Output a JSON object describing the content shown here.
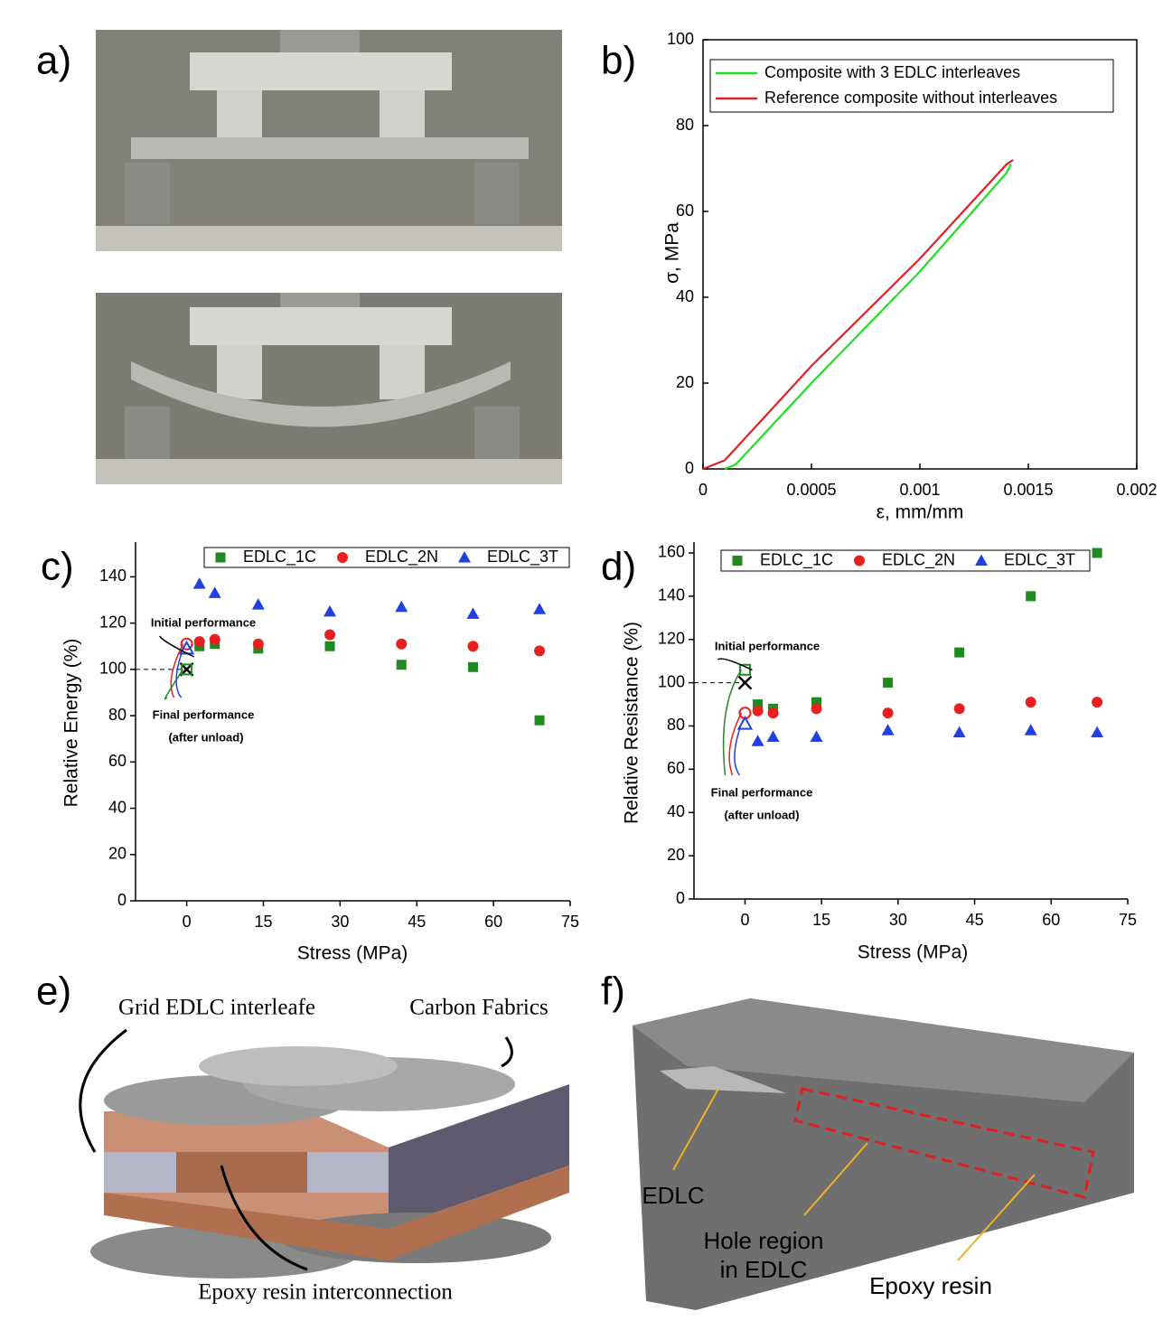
{
  "panels": [
    "a)",
    "b)",
    "c)",
    "d)",
    "e)",
    "f)"
  ],
  "chart_data": [
    {
      "type": "line",
      "xlabel": "ε, mm/mm",
      "ylabel": "σ, MPa",
      "xlim": [
        0,
        0.002
      ],
      "ylim": [
        0,
        100
      ],
      "xticks": [
        0,
        0.0005,
        0.001,
        0.0015,
        0.002
      ],
      "yticks": [
        0,
        20,
        40,
        60,
        80,
        100
      ],
      "series": [
        {
          "name": "Composite with 3 EDLC interleaves",
          "color": "#22dd22",
          "x": [
            0.0001,
            0.00015,
            0.0005,
            0.001,
            0.0014,
            0.00142
          ],
          "values": [
            0,
            1,
            20,
            46,
            69,
            71
          ]
        },
        {
          "name": "Reference composite without interleaves",
          "color": "#e02020",
          "x": [
            0,
            0.0001,
            0.0005,
            0.001,
            0.0014,
            0.00143
          ],
          "values": [
            0,
            2,
            24,
            49,
            71,
            72
          ]
        }
      ]
    },
    {
      "type": "scatter",
      "xlabel": "Stress (MPa)",
      "ylabel": "Relative Energy (%)",
      "xlim": [
        -10,
        75
      ],
      "ylim": [
        0,
        155
      ],
      "xticks": [
        0,
        15,
        30,
        45,
        60,
        75
      ],
      "yticks": [
        0,
        20,
        40,
        60,
        80,
        100,
        120,
        140
      ],
      "x": [
        2.5,
        5.5,
        14,
        28,
        42,
        56,
        69
      ],
      "initial_x": 0,
      "reference_value": 100,
      "annotations": [
        "Initial performance",
        "Final performance",
        "(after unload)"
      ],
      "series": [
        {
          "name": "EDLC_1C",
          "color": "#1f8a1f",
          "marker": "square",
          "values": [
            110,
            111,
            109,
            110,
            102,
            101,
            78
          ],
          "initial_value": 100
        },
        {
          "name": "EDLC_2N",
          "color": "#e82020",
          "marker": "circle",
          "values": [
            112,
            113,
            111,
            115,
            111,
            110,
            108
          ],
          "initial_value": 111
        },
        {
          "name": "EDLC_3T",
          "color": "#2040e0",
          "marker": "triangle",
          "values": [
            137,
            133,
            128,
            125,
            127,
            124,
            126
          ],
          "initial_value": 109
        }
      ]
    },
    {
      "type": "scatter",
      "xlabel": "Stress (MPa)",
      "ylabel": "Relative Resistance (%)",
      "xlim": [
        -10,
        75
      ],
      "ylim": [
        0,
        165
      ],
      "xticks": [
        0,
        15,
        30,
        45,
        60,
        75
      ],
      "yticks": [
        0,
        20,
        40,
        60,
        80,
        100,
        120,
        140,
        160
      ],
      "x": [
        2.5,
        5.5,
        14,
        28,
        42,
        56,
        69
      ],
      "initial_x": 0,
      "reference_value": 100,
      "annotations": [
        "Initial performance",
        "Final performance",
        "(after unload)"
      ],
      "series": [
        {
          "name": "EDLC_1C",
          "color": "#1f8a1f",
          "marker": "square",
          "values": [
            90,
            88,
            91,
            100,
            114,
            140,
            160
          ],
          "initial_value": 106
        },
        {
          "name": "EDLC_2N",
          "color": "#e82020",
          "marker": "circle",
          "values": [
            87,
            86,
            88,
            86,
            88,
            91,
            91
          ],
          "initial_value": 86
        },
        {
          "name": "EDLC_3T",
          "color": "#2040e0",
          "marker": "triangle",
          "values": [
            73,
            75,
            75,
            78,
            77,
            78,
            77
          ],
          "initial_value": 81
        }
      ]
    }
  ],
  "diagram": {
    "labels": [
      "Grid EDLC interleafe",
      "Carbon Fabrics",
      "Epoxy resin interconnection"
    ]
  },
  "tomography": {
    "labels": [
      [
        "EDLC"
      ],
      [
        "Hole region",
        "in EDLC"
      ],
      [
        "Epoxy resin"
      ]
    ]
  }
}
